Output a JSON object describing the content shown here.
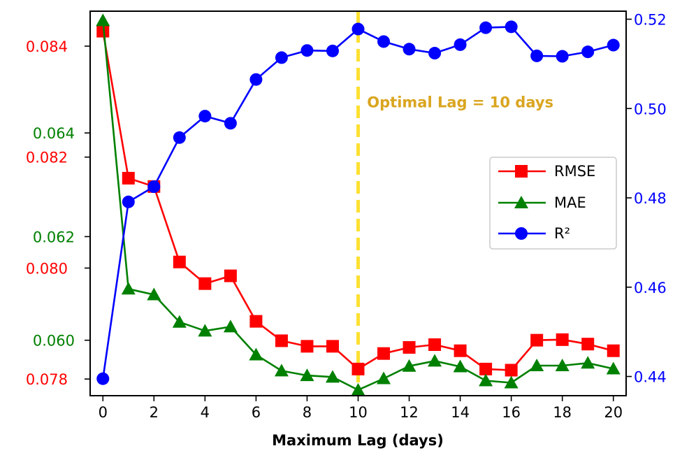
{
  "chart_data": {
    "type": "line",
    "title": "",
    "xlabel": "Maximum Lag (days)",
    "x": [
      0,
      1,
      2,
      3,
      4,
      5,
      6,
      7,
      8,
      9,
      10,
      11,
      12,
      13,
      14,
      15,
      16,
      17,
      18,
      19,
      20
    ],
    "xlim": [
      -0.5,
      20.5
    ],
    "xticks": [
      0,
      2,
      4,
      6,
      8,
      10,
      12,
      14,
      16,
      18,
      20
    ],
    "series": [
      {
        "name": "RMSE",
        "color": "#ff0000",
        "marker": "square",
        "axis": "left-outer",
        "values": [
          0.08427,
          0.08162,
          0.08147,
          0.08011,
          0.07972,
          0.07986,
          0.07904,
          0.07869,
          0.07859,
          0.07859,
          0.07818,
          0.07846,
          0.07857,
          0.07862,
          0.07851,
          0.07818,
          0.07816,
          0.0787,
          0.07871,
          0.07863,
          0.07851
        ],
        "ylim": [
          0.0777,
          0.08463
        ],
        "yticks": [
          0.078,
          0.08,
          0.082,
          0.084
        ],
        "tick_labels": [
          "0.078",
          "0.080",
          "0.082",
          "0.084"
        ]
      },
      {
        "name": "MAE",
        "color": "#008000",
        "marker": "triangle",
        "axis": "left-inner",
        "values": [
          0.06617,
          0.06099,
          0.06088,
          0.06035,
          0.06018,
          0.06026,
          0.05972,
          0.05941,
          0.05932,
          0.05929,
          0.05904,
          0.05926,
          0.0595,
          0.0596,
          0.05949,
          0.05922,
          0.05918,
          0.05951,
          0.05951,
          0.05956,
          0.05945
        ],
        "ylim": [
          0.05893,
          0.06635
        ],
        "yticks": [
          0.06,
          0.062,
          0.064
        ],
        "tick_labels": [
          "0.060",
          "0.062",
          "0.064"
        ]
      },
      {
        "name": "R²",
        "color": "#0000ff",
        "marker": "circle",
        "axis": "right",
        "values": [
          0.4395,
          0.4791,
          0.4825,
          0.4935,
          0.4983,
          0.4967,
          0.5065,
          0.5114,
          0.513,
          0.5129,
          0.5178,
          0.515,
          0.5133,
          0.5124,
          0.5143,
          0.5181,
          0.5183,
          0.5118,
          0.5117,
          0.5127,
          0.5142
        ],
        "ylim": [
          0.4357,
          0.5218
        ],
        "yticks": [
          0.44,
          0.46,
          0.48,
          0.5,
          0.52
        ],
        "tick_labels": [
          "0.44",
          "0.46",
          "0.48",
          "0.50",
          "0.52"
        ]
      }
    ],
    "vline": {
      "x": 10,
      "color": "#fde031",
      "style": "dashed"
    },
    "annotation": {
      "text": "Optimal Lag = 10 days",
      "color": "#daa520",
      "x": 10.35,
      "r2": 0.5003
    },
    "legend": {
      "placement": "center-right",
      "entries": [
        "RMSE",
        "MAE",
        "R²"
      ]
    }
  }
}
